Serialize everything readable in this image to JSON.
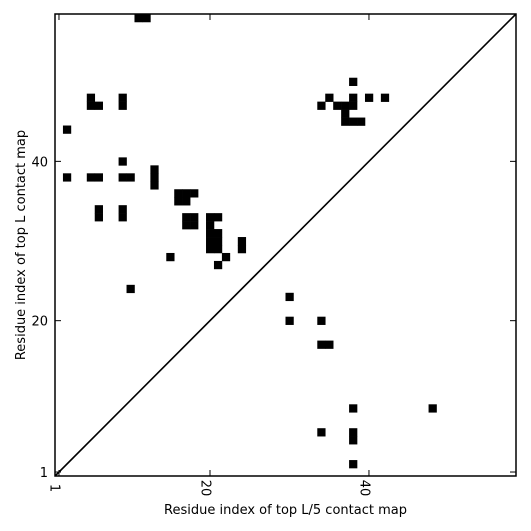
{
  "chart_data": {
    "type": "heatmap",
    "xlabel": "Residue index of top L/5 contact map",
    "ylabel": "Residue index of top L contact map",
    "xlim": [
      0.5,
      58.5
    ],
    "ylim": [
      0.5,
      58.5
    ],
    "x_ticks": [
      {
        "value": 1,
        "label": "1"
      },
      {
        "value": 20,
        "label": "20"
      },
      {
        "value": 40,
        "label": "40"
      }
    ],
    "y_ticks": [
      {
        "value": 1,
        "label": "1"
      },
      {
        "value": 20,
        "label": "20"
      },
      {
        "value": 40,
        "label": "40"
      }
    ],
    "diagonal": true,
    "cell_color": "#000000",
    "upper_contacts": [
      [
        11,
        58
      ],
      [
        12,
        58
      ],
      [
        38,
        50
      ],
      [
        5,
        48
      ],
      [
        9,
        48
      ],
      [
        35,
        48
      ],
      [
        38,
        48
      ],
      [
        40,
        48
      ],
      [
        42,
        48
      ],
      [
        5,
        47
      ],
      [
        6,
        47
      ],
      [
        9,
        47
      ],
      [
        34,
        47
      ],
      [
        36,
        47
      ],
      [
        37,
        47
      ],
      [
        38,
        47
      ],
      [
        37,
        46
      ],
      [
        37,
        45
      ],
      [
        38,
        45
      ],
      [
        39,
        45
      ],
      [
        2,
        44
      ],
      [
        9,
        40
      ],
      [
        13,
        39
      ],
      [
        2,
        38
      ],
      [
        5,
        38
      ],
      [
        6,
        38
      ],
      [
        9,
        38
      ],
      [
        10,
        38
      ],
      [
        13,
        38
      ],
      [
        13,
        37
      ],
      [
        16,
        36
      ],
      [
        17,
        36
      ],
      [
        18,
        36
      ],
      [
        16,
        35
      ],
      [
        17,
        35
      ],
      [
        6,
        34
      ],
      [
        9,
        34
      ],
      [
        6,
        33
      ],
      [
        9,
        33
      ],
      [
        17,
        33
      ],
      [
        18,
        33
      ],
      [
        20,
        33
      ],
      [
        21,
        33
      ],
      [
        17,
        32
      ],
      [
        18,
        32
      ],
      [
        20,
        32
      ],
      [
        20,
        31
      ],
      [
        21,
        31
      ],
      [
        20,
        30
      ],
      [
        21,
        30
      ],
      [
        24,
        30
      ],
      [
        20,
        29
      ],
      [
        21,
        29
      ],
      [
        24,
        29
      ],
      [
        15,
        28
      ],
      [
        22,
        28
      ],
      [
        21,
        27
      ],
      [
        10,
        24
      ],
      [
        30,
        23
      ],
      [
        30,
        20
      ],
      [
        34,
        20
      ]
    ],
    "lower_contacts": [
      [
        34,
        17
      ],
      [
        35,
        17
      ],
      [
        38,
        9
      ],
      [
        48,
        9
      ],
      [
        34,
        6
      ],
      [
        38,
        6
      ],
      [
        38,
        5
      ],
      [
        38,
        2
      ]
    ]
  }
}
